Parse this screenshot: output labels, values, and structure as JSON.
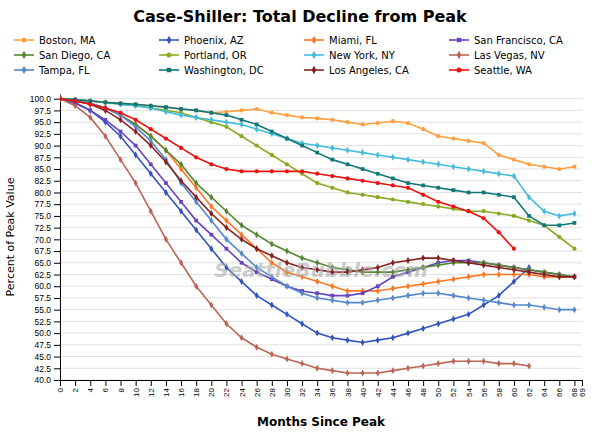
{
  "chart_data": {
    "type": "line",
    "title": "Case-Shiller: Total Decline from Peak",
    "x_label": "Months Since Peak",
    "y_label": "Percent of Peak Value",
    "annotations": [
      "SeattleBubble.com"
    ],
    "xlim": [
      0,
      69
    ],
    "ylim": [
      40,
      101
    ],
    "xticks": [
      0,
      2,
      4,
      6,
      8,
      10,
      12,
      14,
      16,
      18,
      20,
      22,
      24,
      26,
      28,
      30,
      32,
      34,
      36,
      38,
      40,
      42,
      44,
      46,
      48,
      50,
      52,
      54,
      56,
      58,
      60,
      62,
      64,
      66,
      68,
      69
    ],
    "yticks": [
      {
        "value": 40,
        "label": "40.0"
      },
      {
        "value": 42.5,
        "label": "42.5"
      },
      {
        "value": 45,
        "label": "45.0"
      },
      {
        "value": 47.5,
        "label": "47.5"
      },
      {
        "value": 50,
        "label": "50.0"
      },
      {
        "value": 52.5,
        "label": "52.5"
      },
      {
        "value": 55,
        "label": "55.0"
      },
      {
        "value": 57.5,
        "label": "57.5"
      },
      {
        "value": 60,
        "label": "60.0"
      },
      {
        "value": 62.5,
        "label": "62.5"
      },
      {
        "value": 65,
        "label": "65.0"
      },
      {
        "value": 67.5,
        "label": "67.5"
      },
      {
        "value": 70,
        "label": "70.0"
      },
      {
        "value": 72.5,
        "label": "72.5"
      },
      {
        "value": 75,
        "label": "75.0"
      },
      {
        "value": 77.5,
        "label": "77.5"
      },
      {
        "value": 80,
        "label": "80.0"
      },
      {
        "value": 82.5,
        "label": "82.5"
      },
      {
        "value": 85,
        "label": "85.0"
      },
      {
        "value": 87.5,
        "label": "87.5"
      },
      {
        "value": 90,
        "label": "90.0"
      },
      {
        "value": 92.5,
        "label": "92.5"
      },
      {
        "value": 95,
        "label": "95.0"
      },
      {
        "value": 97.5,
        "label": "97.5"
      },
      {
        "value": 100,
        "label": "100.0"
      }
    ],
    "grid": true,
    "legend": "top",
    "series": [
      {
        "name": "Boston, MA",
        "color": "#FFA040",
        "marker": "circle",
        "x": [
          0,
          2,
          4,
          6,
          8,
          10,
          12,
          14,
          16,
          18,
          20,
          22,
          24,
          26,
          28,
          30,
          32,
          34,
          36,
          38,
          40,
          42,
          44,
          46,
          48,
          50,
          52,
          54,
          56,
          58,
          60,
          62,
          64,
          66,
          68
        ],
        "values": [
          100,
          99.8,
          99.6,
          99.3,
          99,
          98.8,
          98.5,
          98.2,
          97.8,
          97.5,
          97,
          97.2,
          97.5,
          97.8,
          97,
          96.5,
          96,
          95.8,
          95.5,
          95,
          94.5,
          94.8,
          95.2,
          94.8,
          93.5,
          92,
          91.5,
          91,
          90.5,
          88,
          87,
          86,
          85.5,
          85,
          85.5
        ]
      },
      {
        "name": "Phoenix, AZ",
        "color": "#3355BB",
        "marker": "diamond",
        "x": [
          0,
          2,
          4,
          6,
          8,
          10,
          12,
          14,
          16,
          18,
          20,
          22,
          24,
          26,
          28,
          30,
          32,
          34,
          36,
          38,
          40,
          42,
          44,
          46,
          48,
          50,
          52,
          54,
          56,
          58,
          60,
          62
        ],
        "values": [
          100,
          99.2,
          97.5,
          95,
          92,
          88,
          84,
          80,
          76,
          72,
          68,
          64,
          61,
          58,
          56,
          54,
          52,
          50,
          49,
          48.5,
          48,
          48.5,
          49,
          50,
          51,
          52,
          53,
          54,
          56,
          58,
          61,
          64
        ]
      },
      {
        "name": "Miami, FL",
        "color": "#FF7722",
        "marker": "diamond",
        "x": [
          0,
          2,
          4,
          6,
          8,
          10,
          12,
          14,
          16,
          18,
          20,
          22,
          24,
          26,
          28,
          30,
          32,
          34,
          36,
          38,
          40,
          42,
          44,
          46,
          48,
          50,
          52,
          54,
          56,
          58,
          60,
          62,
          64,
          66,
          68
        ],
        "values": [
          100,
          99.5,
          99,
          98,
          96.5,
          94.5,
          92,
          89,
          85,
          81,
          77,
          74,
          71,
          68,
          65,
          63,
          62,
          61,
          60,
          59,
          59,
          59,
          59.5,
          60,
          60.5,
          61,
          61.5,
          62,
          62.5,
          62.5,
          62.5,
          62.5,
          62,
          62,
          62
        ]
      },
      {
        "name": "San Francisco, CA",
        "color": "#6644BB",
        "marker": "square",
        "x": [
          0,
          2,
          4,
          6,
          8,
          10,
          12,
          14,
          16,
          18,
          20,
          22,
          24,
          26,
          28,
          30,
          32,
          34,
          36,
          38,
          40,
          42,
          44,
          46,
          48,
          50,
          52,
          54,
          56,
          58,
          60,
          62,
          64,
          66,
          68
        ],
        "values": [
          100,
          99,
          97.5,
          95.5,
          93,
          90,
          86,
          82,
          78,
          74,
          71,
          68,
          65,
          63,
          61.5,
          60,
          59,
          58.5,
          58,
          58,
          58.5,
          60,
          62,
          63,
          64,
          65,
          65.5,
          65.5,
          65,
          64.5,
          64,
          63.5,
          63,
          62.5,
          62
        ]
      },
      {
        "name": "San Diego, CA",
        "color": "#558833",
        "marker": "diamond",
        "x": [
          0,
          2,
          4,
          6,
          8,
          10,
          12,
          14,
          16,
          18,
          20,
          22,
          24,
          26,
          28,
          30,
          32,
          34,
          36,
          38,
          40,
          42,
          44,
          46,
          48,
          50,
          52,
          54,
          56,
          58,
          60,
          62,
          64,
          66,
          68
        ],
        "values": [
          100,
          99.5,
          99,
          98,
          96.5,
          94.5,
          92,
          89,
          86,
          82,
          79,
          76,
          73,
          71,
          69,
          67.5,
          66,
          65,
          64,
          63.5,
          63,
          63,
          63,
          63.5,
          64,
          64.5,
          65,
          65,
          65,
          64.5,
          64,
          63.5,
          63,
          62.5,
          62
        ]
      },
      {
        "name": "Portland, OR",
        "color": "#88AA22",
        "marker": "circle",
        "x": [
          0,
          2,
          4,
          6,
          8,
          10,
          12,
          14,
          16,
          18,
          20,
          22,
          24,
          26,
          28,
          30,
          32,
          34,
          36,
          38,
          40,
          42,
          44,
          46,
          48,
          50,
          52,
          54,
          56,
          58,
          60,
          62,
          64,
          66,
          68
        ],
        "values": [
          100,
          99.8,
          99.5,
          99.2,
          98.8,
          98.5,
          98,
          97.5,
          97,
          96,
          95,
          94,
          92,
          90,
          88,
          86,
          84,
          82,
          81,
          80,
          79.5,
          79,
          78.5,
          78,
          77.5,
          77,
          76.5,
          76,
          76,
          75.5,
          75,
          74,
          73,
          70.5,
          68
        ]
      },
      {
        "name": "New York, NY",
        "color": "#44BBDD",
        "marker": "diamond",
        "x": [
          0,
          2,
          4,
          6,
          8,
          10,
          12,
          14,
          16,
          18,
          20,
          22,
          24,
          26,
          28,
          30,
          32,
          34,
          36,
          38,
          40,
          42,
          44,
          46,
          48,
          50,
          52,
          54,
          56,
          58,
          60,
          62,
          64,
          66,
          68
        ],
        "values": [
          100,
          99.8,
          99.5,
          99.2,
          98.8,
          98.5,
          98,
          97.2,
          96.5,
          96,
          95.5,
          95,
          94.5,
          93.5,
          92.5,
          91.5,
          90.5,
          90,
          89.5,
          89,
          88.5,
          88,
          87.5,
          87,
          86.5,
          86,
          85.5,
          85,
          84.5,
          84,
          83.5,
          79,
          76,
          75,
          75.5
        ]
      },
      {
        "name": "Las Vegas, NV",
        "color": "#BB6655",
        "marker": "diamond",
        "x": [
          0,
          2,
          4,
          6,
          8,
          10,
          12,
          14,
          16,
          18,
          20,
          22,
          24,
          26,
          28,
          30,
          32,
          34,
          36,
          38,
          40,
          42,
          44,
          46,
          48,
          50,
          52,
          54,
          56,
          58,
          60,
          62
        ],
        "values": [
          100,
          98.5,
          96,
          92,
          87,
          82,
          76,
          70,
          65,
          60,
          56,
          52,
          49,
          47,
          45.5,
          44.5,
          43.5,
          42.5,
          42,
          41.5,
          41.5,
          41.5,
          42,
          42.5,
          43,
          43.5,
          44,
          44,
          44,
          43.5,
          43.5,
          43
        ]
      },
      {
        "name": "Tampa, FL",
        "color": "#5588CC",
        "marker": "diamond",
        "x": [
          0,
          2,
          4,
          6,
          8,
          10,
          12,
          14,
          16,
          18,
          20,
          22,
          24,
          26,
          28,
          30,
          32,
          34,
          36,
          38,
          40,
          42,
          44,
          46,
          48,
          50,
          52,
          54,
          56,
          58,
          60,
          62,
          64,
          66,
          68
        ],
        "values": [
          100,
          99.5,
          99,
          98,
          96.5,
          94,
          91,
          87,
          82,
          78,
          74,
          70,
          67,
          64,
          62,
          60,
          58.5,
          57.5,
          57,
          56.5,
          56.5,
          57,
          57.5,
          58,
          58.5,
          58.5,
          58,
          57.5,
          57,
          56.5,
          56,
          56,
          55.5,
          55,
          55
        ]
      },
      {
        "name": "Washington, DC",
        "color": "#117777",
        "marker": "square",
        "x": [
          0,
          2,
          4,
          6,
          8,
          10,
          12,
          14,
          16,
          18,
          20,
          22,
          24,
          26,
          28,
          30,
          32,
          34,
          36,
          38,
          40,
          42,
          44,
          46,
          48,
          50,
          52,
          54,
          56,
          58,
          60,
          62,
          64,
          66,
          68
        ],
        "values": [
          100,
          99.8,
          99.5,
          99.2,
          99,
          98.8,
          98.5,
          98.2,
          97.8,
          97.5,
          97,
          96.5,
          95.5,
          94.5,
          93,
          91.5,
          90,
          88.5,
          87,
          86,
          85,
          84,
          83,
          82,
          81.5,
          81,
          80.5,
          80,
          80,
          79.5,
          79,
          75,
          73,
          73,
          73.5
        ]
      },
      {
        "name": "Los Angeles, CA",
        "color": "#882222",
        "marker": "diamond",
        "x": [
          0,
          2,
          4,
          6,
          8,
          10,
          12,
          14,
          16,
          18,
          20,
          22,
          24,
          26,
          28,
          30,
          32,
          34,
          36,
          38,
          40,
          42,
          44,
          46,
          48,
          50,
          52,
          54,
          56,
          58,
          60,
          62,
          64,
          66,
          68
        ],
        "values": [
          100,
          99.5,
          98.8,
          97.5,
          95.5,
          93,
          90,
          86.5,
          82.5,
          79,
          75.5,
          72.5,
          70,
          68,
          66.5,
          65,
          64,
          63.5,
          63,
          63,
          63.5,
          64,
          65,
          65.5,
          66,
          66,
          65.5,
          65,
          64.5,
          64,
          63.5,
          63,
          62.5,
          62,
          62
        ]
      },
      {
        "name": "Seattle, WA",
        "color": "#EE1111",
        "marker": "circle",
        "x": [
          0,
          2,
          4,
          6,
          8,
          10,
          12,
          14,
          16,
          18,
          20,
          22,
          24,
          26,
          28,
          30,
          32,
          34,
          36,
          38,
          40,
          42,
          44,
          46,
          48,
          50,
          52,
          54,
          56,
          58,
          60
        ],
        "values": [
          100,
          99.5,
          98.8,
          98,
          97,
          95.5,
          93.5,
          91.5,
          89.5,
          87.5,
          86,
          85,
          84.5,
          84.5,
          84.5,
          84.5,
          84.5,
          84,
          83.5,
          83,
          82.5,
          82,
          81.5,
          81,
          79.5,
          78,
          77,
          76,
          74.5,
          71.5,
          68
        ]
      }
    ]
  }
}
